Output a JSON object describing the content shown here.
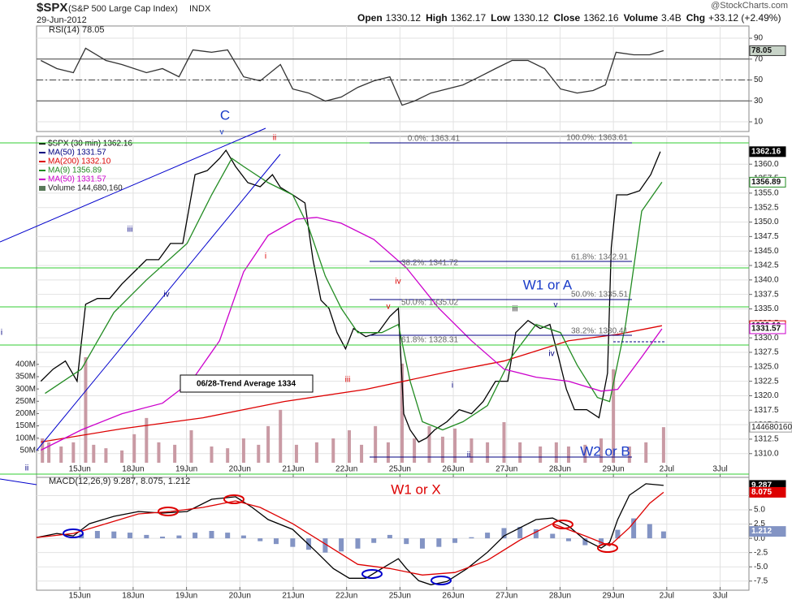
{
  "header": {
    "symbol": "$SPX",
    "name": "(S&P 500 Large Cap Index)",
    "exchange": "INDX",
    "date": "29-Jun-2012",
    "brand": "@StockCharts.com",
    "quote": [
      {
        "label": "Open",
        "value": "1330.12"
      },
      {
        "label": "High",
        "value": "1362.17"
      },
      {
        "label": "Low",
        "value": "1330.12"
      },
      {
        "label": "Close",
        "value": "1362.16"
      },
      {
        "label": "Volume",
        "value": "3.4B"
      },
      {
        "label": "Chg",
        "value": "+33.12 (+2.49%)"
      }
    ]
  },
  "annotations": [
    "C",
    "v",
    "ii",
    "iii",
    "iv",
    "i",
    "iii",
    "iv",
    "v",
    "i",
    "ii",
    "iii",
    "v",
    "iv",
    "W1 or A",
    "W2 or B",
    "W1 or X",
    "ii",
    "i",
    "0.0%: 1363.41",
    "100.0%: 1363.61",
    "38.2%: 1341.72",
    "61.8%: 1342.91",
    "50.0%: 1335.02",
    "50.0%: 1335.51",
    "61.8%: 1328.31",
    "38.2%: 1330.41",
    "06/28-Trend Average 1334"
  ],
  "chart_data": [
    {
      "type": "line",
      "title": "RSI(14) 78.05",
      "xlim": [
        0.19,
        13.54
      ],
      "ylim": [
        0.7,
        101.7
      ],
      "yticks": [
        10,
        30,
        50,
        70,
        90
      ],
      "levels": [
        70,
        50,
        30
      ],
      "grid": true,
      "series": [
        {
          "name": "RSI(14)",
          "color": "#333333",
          "last": 78.05,
          "x": [
            0.27,
            0.57,
            0.88,
            1.11,
            1.49,
            1.79,
            2.25,
            2.55,
            2.86,
            3.12,
            3.47,
            3.77,
            4.07,
            4.38,
            4.76,
            4.99,
            5.29,
            5.6,
            5.9,
            6.21,
            6.51,
            6.81,
            7.04,
            7.27,
            7.58,
            7.88,
            8.18,
            8.49,
            8.79,
            9.1,
            9.4,
            9.71,
            10.01,
            10.32,
            10.62,
            10.85,
            11.05,
            11.38,
            11.68,
            11.94
          ],
          "values": [
            68.7,
            60.9,
            57,
            80.4,
            68.7,
            64.8,
            57,
            60.9,
            53.1,
            78.8,
            76.5,
            78.8,
            53.1,
            49.2,
            64.8,
            41.4,
            37.5,
            29.8,
            33.7,
            43,
            49.2,
            53.1,
            25.9,
            29.8,
            37.5,
            41.4,
            45.3,
            53.1,
            60.9,
            68.7,
            68.7,
            60.9,
            41.4,
            37.5,
            39.9,
            45.3,
            76.5,
            74.1,
            74.1,
            78.05
          ]
        }
      ]
    },
    {
      "type": "line",
      "xlim": [
        0.19,
        13.54
      ],
      "ylim": [
        1305.9,
        1364.8
      ],
      "grid": true,
      "xticks": [
        {
          "value": 1,
          "label": "15Jun"
        },
        {
          "value": 2,
          "label": "18Jun"
        },
        {
          "value": 3,
          "label": "19Jun"
        },
        {
          "value": 4,
          "label": "20Jun"
        },
        {
          "value": 5,
          "label": "21Jun"
        },
        {
          "value": 6,
          "label": "22Jun"
        },
        {
          "value": 7,
          "label": "25Jun"
        },
        {
          "value": 8,
          "label": "26Jun"
        },
        {
          "value": 9,
          "label": "27Jun"
        },
        {
          "value": 10,
          "label": "28Jun"
        },
        {
          "value": 11,
          "label": "29Jun"
        },
        {
          "value": 12,
          "label": "2Jul"
        },
        {
          "value": 13,
          "label": "3Jul"
        }
      ],
      "yticks": [
        {
          "value": 1310,
          "label": "1310.0"
        },
        1312.5,
        {
          "value": 1315,
          "label": "1315.0"
        },
        1317.5,
        {
          "value": 1320,
          "label": "1320.0"
        },
        1322.5,
        {
          "value": 1325,
          "label": "1325.0"
        },
        1327.5,
        {
          "value": 1330,
          "label": "1330.0"
        },
        1332.5,
        {
          "value": 1335,
          "label": "1335.0"
        },
        1337.5,
        {
          "value": 1340,
          "label": "1340.0"
        },
        1342.5,
        {
          "value": 1345,
          "label": "1345.0"
        },
        1347.5,
        {
          "value": 1350,
          "label": "1350.0"
        },
        1352.5,
        {
          "value": 1355,
          "label": "1355.0"
        },
        1357.5,
        {
          "value": 1360,
          "label": "1360.0"
        }
      ],
      "series": [
        {
          "name": "$SPX (30 min) 1362.16",
          "color": "#000000",
          "last": 1362.16,
          "x": [
            0.27,
            0.5,
            0.73,
            0.95,
            1.11,
            1.33,
            1.56,
            1.79,
            2.02,
            2.25,
            2.48,
            2.7,
            2.93,
            3.16,
            3.39,
            3.62,
            3.74,
            3.92,
            4.15,
            4.38,
            4.61,
            4.76,
            4.99,
            5.22,
            5.37,
            5.52,
            5.67,
            5.82,
            5.98,
            6.13,
            6.36,
            6.59,
            6.81,
            6.97,
            7.07,
            7.19,
            7.35,
            7.5,
            7.65,
            7.88,
            8.11,
            8.34,
            8.56,
            8.79,
            9.02,
            9.17,
            9.4,
            9.63,
            9.81,
            9.97,
            10.12,
            10.27,
            10.5,
            10.73,
            10.89,
            10.96,
            11.06,
            11.26,
            11.49,
            11.7,
            11.88
          ],
          "values": [
            1322.5,
            1324.6,
            1326,
            1322.5,
            1335.8,
            1336.8,
            1336.8,
            1339.3,
            1341.4,
            1343.5,
            1343.5,
            1346.3,
            1346.3,
            1358.2,
            1358.9,
            1361,
            1362.4,
            1359.6,
            1356.8,
            1356.1,
            1358.2,
            1356,
            1354.7,
            1353.3,
            1343.5,
            1336.5,
            1335.1,
            1330.9,
            1328.1,
            1331.6,
            1330.2,
            1330.9,
            1333.7,
            1335.1,
            1316.9,
            1314.1,
            1312,
            1312.7,
            1314.1,
            1315.5,
            1317.6,
            1316.9,
            1319,
            1322.5,
            1322.5,
            1330.9,
            1333,
            1331.6,
            1332.3,
            1326.7,
            1321.1,
            1317.6,
            1317.6,
            1316.2,
            1323.9,
            1345.6,
            1354.7,
            1354.7,
            1355.4,
            1358.2,
            1362.16
          ]
        },
        {
          "name": "MA(50) 1331.57",
          "color": "#000080",
          "x": [],
          "values": []
        },
        {
          "name": "MA(200) 1332.10",
          "color": "#dd0000",
          "last": {
            "value": 1332.1,
            "label": "1332.10"
          },
          "x": [
            0.27,
            1.79,
            3.31,
            4.83,
            6.36,
            7.88,
            8.95,
            10.16,
            11.08,
            11.91
          ],
          "values": [
            1312,
            1314.3,
            1316.2,
            1319,
            1321.1,
            1324.1,
            1326,
            1329.5,
            1330.6,
            1332.1
          ]
        },
        {
          "name": "MA(9) 1356.89",
          "color": "#228b22",
          "last": 1356.89,
          "x": [
            0.35,
            1.03,
            1.64,
            2.25,
            3.01,
            3.47,
            3.85,
            4.07,
            4.53,
            4.99,
            5.29,
            5.6,
            5.9,
            6.21,
            6.66,
            6.97,
            7.19,
            7.42,
            7.8,
            8.18,
            8.64,
            9.09,
            9.55,
            10.01,
            10.32,
            10.7,
            10.93,
            11.23,
            11.53,
            11.91
          ],
          "values": [
            1320.4,
            1324.6,
            1334.4,
            1340,
            1346.3,
            1354.7,
            1361,
            1359.6,
            1356.8,
            1354.7,
            1349.1,
            1340.7,
            1335.1,
            1330.9,
            1330.9,
            1332.3,
            1322.5,
            1315.5,
            1314.1,
            1315.5,
            1318.3,
            1326.7,
            1332.3,
            1330.9,
            1325.3,
            1319.7,
            1319,
            1332.3,
            1351.9,
            1356.89
          ]
        },
        {
          "name": "MA(50) 1331.57",
          "color": "#cc00cc",
          "last": 1331.57,
          "x": [
            0.27,
            1.03,
            1.79,
            2.55,
            3.09,
            3.62,
            4.07,
            4.53,
            5.06,
            5.44,
            5.9,
            6.51,
            7.12,
            7.73,
            8.34,
            8.95,
            9.55,
            10.16,
            10.77,
            11.08,
            11.53,
            11.91
          ],
          "values": [
            1310.6,
            1314.1,
            1316.9,
            1318.7,
            1322.5,
            1329.5,
            1341.4,
            1347.7,
            1350.5,
            1350.8,
            1349.8,
            1347,
            1342.1,
            1335.1,
            1329.5,
            1324.6,
            1323.2,
            1322.5,
            1320.8,
            1321.1,
            1326.7,
            1331.57
          ]
        }
      ],
      "volume": {
        "name": "Volume 144,680,160",
        "color": "#c99aa4",
        "ylim": [
          0,
          1327
        ],
        "yticks": [
          {
            "value": 50,
            "label": "50M"
          },
          {
            "value": 100,
            "label": "100M"
          },
          {
            "value": 150,
            "label": "150M"
          },
          {
            "value": 200,
            "label": "200M"
          },
          {
            "value": 250,
            "label": "250M"
          },
          {
            "value": 300,
            "label": "300M"
          },
          {
            "value": 350,
            "label": "350M"
          },
          {
            "value": 400,
            "label": "400M"
          }
        ],
        "last": {
          "value": 144.68,
          "label": "144680160"
        },
        "x": [
          0.3,
          0.42,
          0.65,
          0.88,
          1.11,
          1.26,
          1.49,
          1.79,
          2.02,
          2.25,
          2.48,
          2.78,
          3.09,
          3.47,
          3.77,
          4.07,
          4.35,
          4.53,
          4.76,
          5.06,
          5.44,
          5.75,
          6.05,
          6.28,
          6.54,
          6.78,
          7.04,
          7.27,
          7.55,
          7.8,
          8.03,
          8.34,
          8.64,
          8.95,
          9.25,
          9.63,
          9.93,
          10.16,
          10.47,
          10.77,
          11,
          11.3,
          11.61,
          11.94
        ],
        "values": [
          99,
          83,
          66,
          83,
          429,
          73,
          59,
          50,
          116,
          182,
          83,
          73,
          132,
          66,
          59,
          99,
          73,
          149,
          215,
          73,
          83,
          99,
          132,
          73,
          149,
          83,
          403,
          99,
          149,
          106,
          139,
          99,
          83,
          165,
          83,
          66,
          83,
          66,
          73,
          99,
          380,
          66,
          83,
          144.68
        ]
      }
    },
    {
      "type": "line",
      "title": "MACD(12,26,9) 9.287, 8.075, 1.212",
      "xlim": [
        0.19,
        13.54
      ],
      "ylim": [
        -9.1,
        10.7
      ],
      "grid": true,
      "xticks": [
        {
          "value": 1,
          "label": "15Jun"
        },
        {
          "value": 2,
          "label": "18Jun"
        },
        {
          "value": 3,
          "label": "19Jun"
        },
        {
          "value": 4,
          "label": "20Jun"
        },
        {
          "value": 5,
          "label": "21Jun"
        },
        {
          "value": 6,
          "label": "22Jun"
        },
        {
          "value": 7,
          "label": "25Jun"
        },
        {
          "value": 8,
          "label": "26Jun"
        },
        {
          "value": 9,
          "label": "27Jun"
        },
        {
          "value": 10,
          "label": "28Jun"
        },
        {
          "value": 11,
          "label": "29Jun"
        },
        {
          "value": 12,
          "label": "2Jul"
        },
        {
          "value": 13,
          "label": "3Jul"
        }
      ],
      "yticks": [
        7.5,
        {
          "value": 5,
          "label": "5.0"
        },
        2.5,
        {
          "value": 0,
          "label": "0.0"
        },
        -2.5,
        {
          "value": -5,
          "label": "-5.0"
        },
        -7.5
      ],
      "series": [
        {
          "name": "MACD",
          "type": "bar",
          "color": "#8394c4",
          "last": 1.212,
          "x": [
            1.03,
            1.33,
            1.64,
            1.94,
            2.25,
            2.55,
            2.86,
            3.16,
            3.47,
            3.77,
            4.07,
            4.38,
            4.68,
            4.99,
            5.29,
            5.6,
            5.9,
            6.21,
            6.51,
            6.81,
            7.12,
            7.42,
            7.73,
            8.03,
            8.34,
            8.64,
            8.95,
            9.25,
            9.55,
            9.86,
            10.16,
            10.47,
            10.77,
            11.08,
            11.38,
            11.68,
            11.94
          ],
          "values": [
            0.8,
            1.3,
            1.2,
            1,
            0.6,
            0.3,
            0.5,
            1,
            1.3,
            1,
            0.5,
            -0.5,
            -1,
            -1.5,
            -2,
            -2.5,
            -2.3,
            -1.8,
            -0.8,
            0.6,
            -1,
            -1.8,
            -1.5,
            -0.8,
            0.2,
            1,
            1.8,
            2,
            1.6,
            0.8,
            -0.5,
            -1.2,
            -1,
            1.5,
            3.5,
            2.5,
            1.212
          ]
        },
        {
          "name": "MACD",
          "color": "#000000",
          "last": 9.287,
          "x": [
            0.19,
            0.57,
            0.88,
            1.18,
            1.64,
            2.1,
            2.55,
            3.01,
            3.47,
            3.92,
            4.23,
            4.53,
            4.99,
            5.44,
            5.75,
            6.05,
            6.36,
            6.66,
            6.97,
            7.12,
            7.35,
            7.58,
            7.88,
            8.26,
            8.64,
            8.95,
            9.25,
            9.55,
            9.86,
            10.16,
            10.47,
            10.77,
            10.93,
            11.08,
            11.3,
            11.61,
            11.94
          ],
          "values": [
            0.14,
            0.86,
            0.43,
            2.57,
            3.86,
            4.71,
            4.43,
            4.71,
            6.86,
            7.29,
            5.43,
            3.29,
            1.57,
            -2.43,
            -5.29,
            -7,
            -7,
            -5.29,
            -3.57,
            -5.29,
            -7.43,
            -8.14,
            -7.57,
            -5.29,
            -2.43,
            0.43,
            1.86,
            3.29,
            3.57,
            2.14,
            -0.29,
            -1.71,
            -0.71,
            3.29,
            7.57,
            9.57,
            9.287
          ]
        },
        {
          "name": "MACD",
          "color": "#dd0000",
          "last": 8.075,
          "x": [
            0.19,
            0.88,
            1.49,
            2.1,
            2.7,
            3.31,
            3.92,
            4.38,
            4.99,
            5.6,
            6.21,
            6.81,
            7.42,
            8.03,
            8.64,
            9.25,
            9.86,
            10.47,
            10.93,
            11.3,
            11.68,
            11.94
          ],
          "values": [
            0.14,
            0.86,
            2.57,
            4.29,
            4.71,
            5.43,
            6.57,
            5.43,
            2.57,
            -1,
            -4.57,
            -5.29,
            -6.43,
            -6,
            -3.86,
            -0.29,
            2.57,
            0.43,
            -1.29,
            1.86,
            6.14,
            8.075
          ]
        }
      ]
    }
  ]
}
